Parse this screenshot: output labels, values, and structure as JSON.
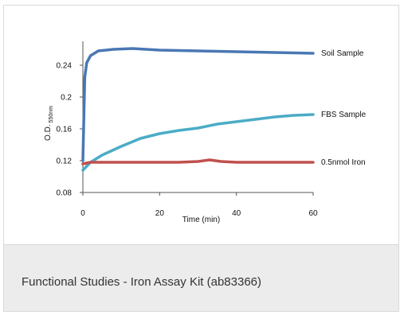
{
  "caption": "Functional Studies - Iron Assay Kit (ab83366)",
  "chart_data": {
    "type": "line",
    "xlabel": "Time (min)",
    "ylabel": "O.D. 550nm",
    "ylabel_main": "O.D.",
    "ylabel_sub": "550nm",
    "xlim": [
      0,
      60
    ],
    "ylim": [
      0.08,
      0.27
    ],
    "xticks": [
      0,
      20,
      40,
      60
    ],
    "xtick_labels": [
      "0",
      "20",
      "40",
      "60"
    ],
    "yticks": [
      0.08,
      0.12,
      0.16,
      0.2,
      0.24
    ],
    "ytick_labels": [
      "0.08",
      "0.12",
      "0.16",
      "0.2",
      "0.24"
    ],
    "grid": false,
    "legend": "inline labels at line ends",
    "series": [
      {
        "name": "Soil Sample",
        "color": "#4a77b4",
        "x": [
          0,
          0.5,
          1,
          2,
          4,
          8,
          13,
          20,
          30,
          40,
          50,
          60
        ],
        "y": [
          0.12,
          0.225,
          0.243,
          0.252,
          0.258,
          0.26,
          0.261,
          0.259,
          0.258,
          0.257,
          0.256,
          0.255
        ]
      },
      {
        "name": "FBS Sample",
        "color": "#4bacc6",
        "x": [
          0,
          2,
          5,
          10,
          15,
          20,
          25,
          30,
          35,
          40,
          45,
          50,
          55,
          60
        ],
        "y": [
          0.108,
          0.118,
          0.127,
          0.138,
          0.148,
          0.154,
          0.158,
          0.161,
          0.166,
          0.169,
          0.172,
          0.175,
          0.177,
          0.178
        ]
      },
      {
        "name": "0.5nmol Iron",
        "color": "#c0504d",
        "x": [
          0,
          2,
          5,
          10,
          15,
          20,
          25,
          30,
          33,
          36,
          40,
          45,
          50,
          55,
          60
        ],
        "y": [
          0.116,
          0.118,
          0.118,
          0.118,
          0.118,
          0.118,
          0.118,
          0.119,
          0.121,
          0.119,
          0.118,
          0.118,
          0.118,
          0.118,
          0.118
        ]
      }
    ]
  }
}
